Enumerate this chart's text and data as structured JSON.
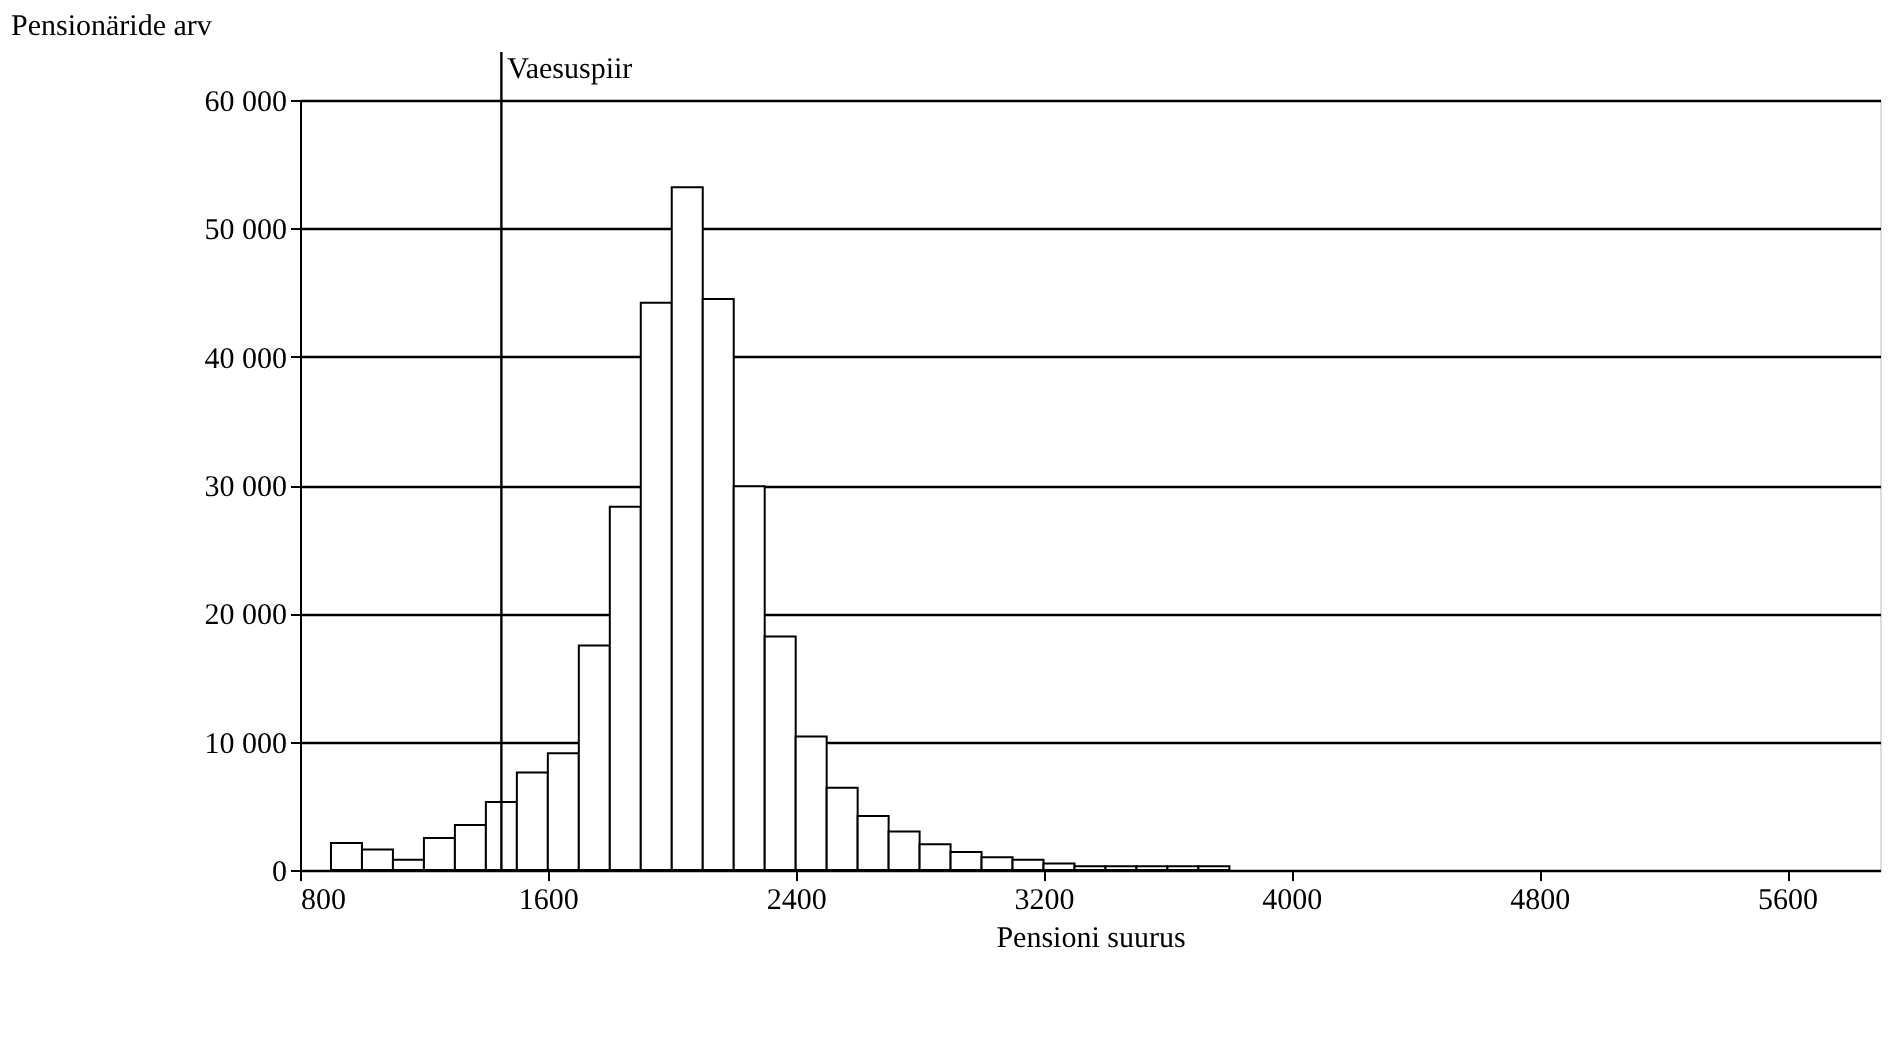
{
  "chart_data": {
    "type": "histogram",
    "xlabel": "Pensioni suurus",
    "ylabel": "Pensionäride arv",
    "bins": [
      900,
      1000,
      1100,
      1200,
      1300,
      1400,
      1500,
      1600,
      1700,
      1800,
      1900,
      2000,
      2100,
      2200,
      2300,
      2400,
      2500,
      2600,
      2700,
      2800,
      2900,
      3000,
      3100,
      3200,
      3300,
      3400,
      3500,
      3600,
      3700,
      3800
    ],
    "values": [
      2100,
      1600,
      800,
      2500,
      3500,
      5300,
      7600,
      9100,
      17500,
      28300,
      44200,
      53200,
      44500,
      29900,
      18200,
      10400,
      6400,
      4200,
      3000,
      2000,
      1400,
      1000,
      800,
      500,
      300,
      300,
      300,
      300,
      300
    ],
    "color": "#ffffff",
    "xlim": [
      800,
      5900
    ],
    "xticks": [
      800,
      1600,
      2400,
      3200,
      4000,
      4800,
      5600
    ],
    "ylim": [
      0,
      60000
    ],
    "yticks": [
      0,
      {
        "value": 10000,
        "label": "10 000"
      },
      {
        "value": 20000,
        "label": "20 000"
      },
      {
        "value": 30000,
        "label": "30 000"
      },
      {
        "value": 40000,
        "label": "40 000"
      },
      {
        "value": 50000,
        "label": "50 000"
      },
      {
        "value": 60000,
        "label": "60 000"
      }
    ],
    "grid": "y",
    "ref_lines": [
      {
        "axis": "x",
        "value": 1450,
        "label": "Vaesuspiir"
      }
    ]
  }
}
